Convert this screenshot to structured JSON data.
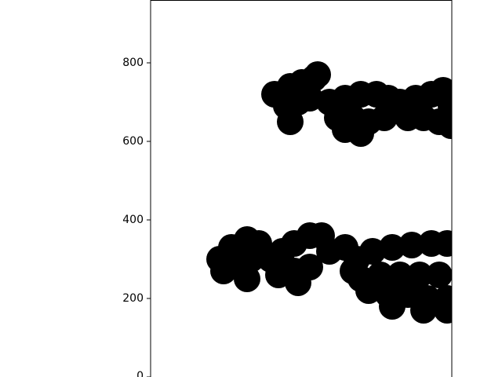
{
  "chart_data": {
    "type": "scatter",
    "color": "#000000",
    "x": [
      316,
      356,
      386,
      416,
      346,
      376,
      406,
      356,
      426,
      456,
      496,
      536,
      576,
      606,
      476,
      516,
      556,
      596,
      536,
      496,
      636,
      676,
      716,
      746,
      656,
      696,
      736,
      766,
      766,
      176,
      206,
      246,
      276,
      186,
      226,
      256,
      246,
      306,
      336,
      366,
      406,
      436,
      326,
      366,
      406,
      376,
      456,
      496,
      526,
      566,
      616,
      666,
      716,
      756,
      536,
      586,
      636,
      686,
      736,
      556,
      606,
      656,
      706,
      756,
      616,
      696,
      756,
      516
    ],
    "y": [
      720,
      740,
      750,
      760,
      690,
      700,
      710,
      650,
      770,
      700,
      710,
      720,
      720,
      710,
      660,
      660,
      650,
      660,
      620,
      630,
      700,
      710,
      720,
      730,
      660,
      660,
      650,
      690,
      640,
      300,
      330,
      350,
      340,
      270,
      280,
      300,
      250,
      300,
      320,
      340,
      360,
      360,
      260,
      270,
      280,
      240,
      320,
      330,
      300,
      320,
      330,
      336,
      340,
      340,
      250,
      260,
      260,
      260,
      260,
      220,
      210,
      210,
      200,
      200,
      180,
      170,
      170,
      270
    ],
    "xlim": [
      0,
      768
    ],
    "ylim": [
      0,
      960
    ],
    "yticks": [
      0,
      200,
      400,
      600,
      800
    ]
  }
}
